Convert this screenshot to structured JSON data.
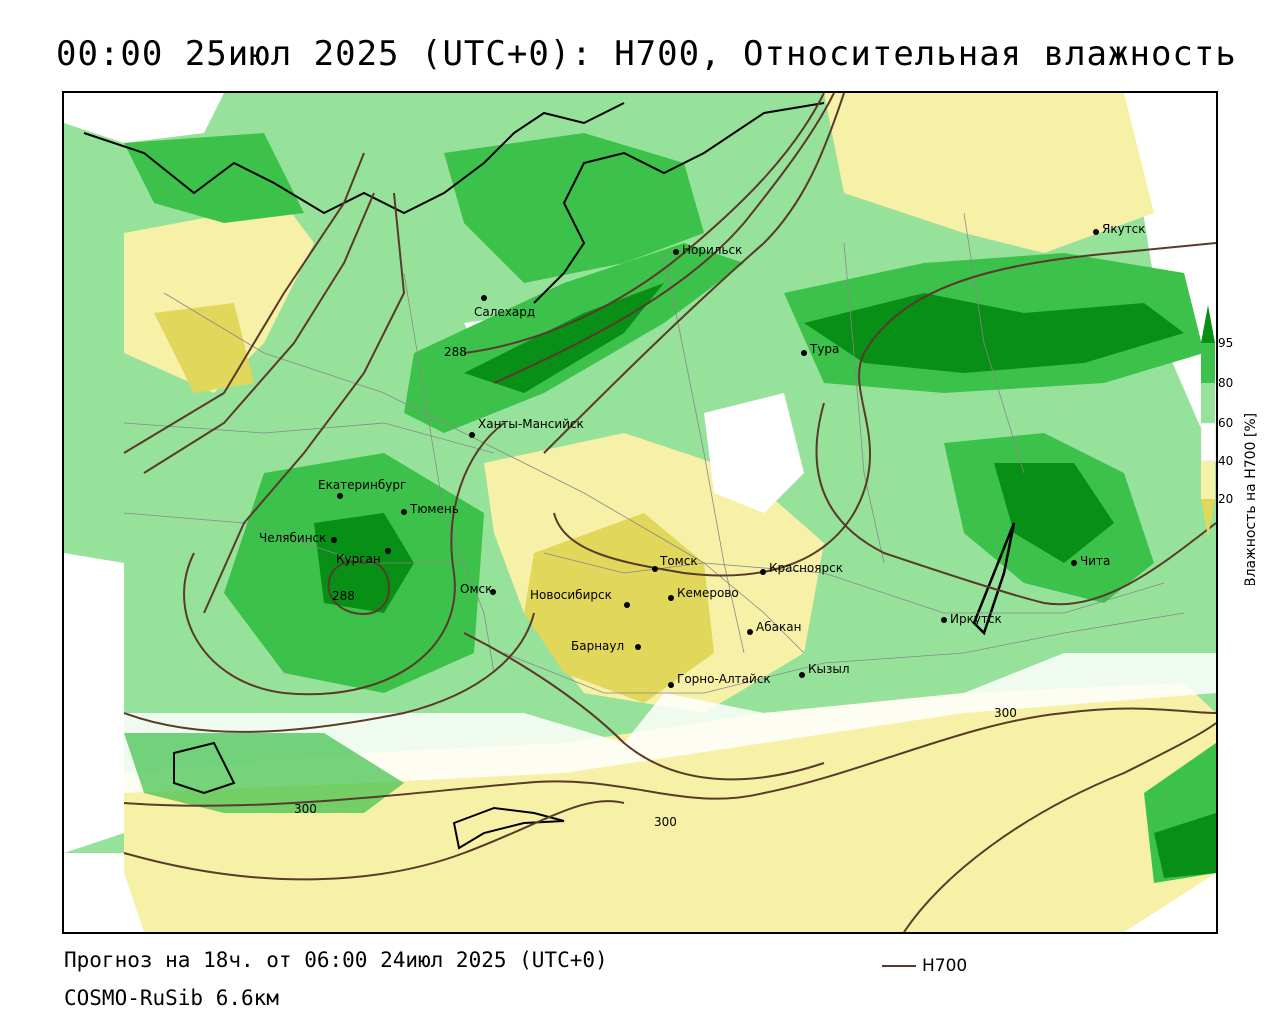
{
  "title": "00:00 25июл 2025 (UTC+0): H700, Относительная влажность",
  "footer": {
    "forecast": "Прогноз на 18ч. от 06:00 24июл 2025 (UTC+0)",
    "model": "COSMO-RuSib 6.6км",
    "legend_line_label": "H700"
  },
  "colorbar": {
    "title": "Влажность на H700 [%]",
    "ticks": [
      "95",
      "80",
      "60",
      "40",
      "20"
    ],
    "colors": {
      "dark_green": "#078f16",
      "green": "#3cc14a",
      "light_green": "#97e29b",
      "white": "#ffffff",
      "light_yellow": "#f6f1a6",
      "yellow": "#e1d75b"
    }
  },
  "cities": [
    {
      "name": "Якутск"
    },
    {
      "name": "Норильск"
    },
    {
      "name": "Салехард"
    },
    {
      "name": "Тура"
    },
    {
      "name": "Ханты-Мансийск"
    },
    {
      "name": "Екатеринбург"
    },
    {
      "name": "Тюмень"
    },
    {
      "name": "Челябинск"
    },
    {
      "name": "Курган"
    },
    {
      "name": "Омск"
    },
    {
      "name": "Томск"
    },
    {
      "name": "Красноярск"
    },
    {
      "name": "Новосибирск"
    },
    {
      "name": "Кемерово"
    },
    {
      "name": "Абакан"
    },
    {
      "name": "Барнаул"
    },
    {
      "name": "Горно-Алтайск"
    },
    {
      "name": "Кызыл"
    },
    {
      "name": "Иркутск"
    },
    {
      "name": "Чита"
    }
  ],
  "contour_labels": [
    "288",
    "288",
    "300",
    "300",
    "300"
  ]
}
